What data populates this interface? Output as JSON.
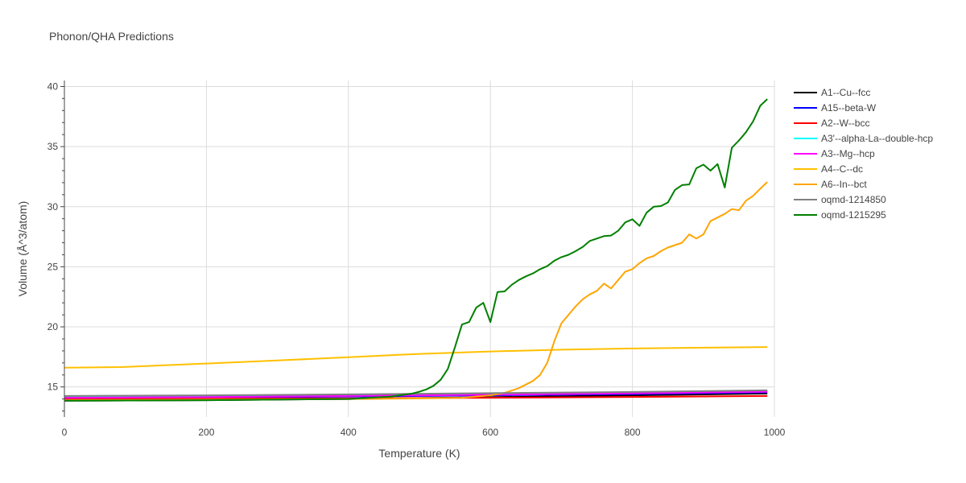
{
  "chart_data": {
    "type": "line",
    "title": "Phonon/QHA Predictions",
    "xlabel": "Temperature (K)",
    "ylabel": "Volume (Å^3/atom)",
    "xlim": [
      0,
      1000
    ],
    "ylim": [
      12.5,
      40.5
    ],
    "xticks": [
      0,
      200,
      400,
      600,
      800,
      1000
    ],
    "yticks": [
      15,
      20,
      25,
      30,
      35,
      40
    ],
    "grid": true,
    "legend_position": "right",
    "series": [
      {
        "name": "A1--Cu--fcc",
        "color": "#000000",
        "points": [
          [
            0,
            13.85
          ],
          [
            200,
            13.9
          ],
          [
            400,
            14.0
          ],
          [
            600,
            14.15
          ],
          [
            800,
            14.3
          ],
          [
            990,
            14.45
          ]
        ]
      },
      {
        "name": "A15--beta-W",
        "color": "#0000ff",
        "points": [
          [
            0,
            14.05
          ],
          [
            200,
            14.1
          ],
          [
            400,
            14.2
          ],
          [
            600,
            14.3
          ],
          [
            800,
            14.4
          ],
          [
            990,
            14.55
          ]
        ]
      },
      {
        "name": "A2--W--bcc",
        "color": "#ff0000",
        "points": [
          [
            0,
            14.0
          ],
          [
            200,
            14.02
          ],
          [
            400,
            14.05
          ],
          [
            600,
            14.1
          ],
          [
            800,
            14.17
          ],
          [
            990,
            14.25
          ]
        ]
      },
      {
        "name": "A3'--alpha-La--double-hcp",
        "color": "#00ffff",
        "points": [
          [
            0,
            14.2
          ],
          [
            200,
            14.25
          ],
          [
            400,
            14.32
          ],
          [
            600,
            14.4
          ],
          [
            800,
            14.5
          ],
          [
            990,
            14.62
          ]
        ]
      },
      {
        "name": "A3--Mg--hcp",
        "color": "#ff00ff",
        "points": [
          [
            0,
            14.1
          ],
          [
            200,
            14.16
          ],
          [
            400,
            14.25
          ],
          [
            600,
            14.35
          ],
          [
            800,
            14.47
          ],
          [
            990,
            14.6
          ]
        ]
      },
      {
        "name": "A4--C--dc",
        "color": "#ffc000",
        "points": [
          [
            0,
            16.6
          ],
          [
            80,
            16.65
          ],
          [
            200,
            16.95
          ],
          [
            300,
            17.2
          ],
          [
            400,
            17.48
          ],
          [
            500,
            17.75
          ],
          [
            600,
            17.95
          ],
          [
            700,
            18.1
          ],
          [
            800,
            18.2
          ],
          [
            900,
            18.27
          ],
          [
            990,
            18.32
          ]
        ]
      },
      {
        "name": "A6--In--bct",
        "color": "#ffa500",
        "points": [
          [
            0,
            13.9
          ],
          [
            200,
            13.95
          ],
          [
            400,
            14.0
          ],
          [
            500,
            14.05
          ],
          [
            560,
            14.1
          ],
          [
            600,
            14.3
          ],
          [
            620,
            14.5
          ],
          [
            640,
            14.9
          ],
          [
            650,
            15.2
          ],
          [
            660,
            15.5
          ],
          [
            670,
            16.0
          ],
          [
            680,
            17.0
          ],
          [
            690,
            18.8
          ],
          [
            700,
            20.3
          ],
          [
            710,
            21.0
          ],
          [
            720,
            21.7
          ],
          [
            730,
            22.3
          ],
          [
            740,
            22.7
          ],
          [
            750,
            23.0
          ],
          [
            760,
            23.6
          ],
          [
            770,
            23.2
          ],
          [
            780,
            23.9
          ],
          [
            790,
            24.6
          ],
          [
            800,
            24.8
          ],
          [
            810,
            25.3
          ],
          [
            820,
            25.7
          ],
          [
            830,
            25.9
          ],
          [
            840,
            26.3
          ],
          [
            850,
            26.6
          ],
          [
            860,
            26.8
          ],
          [
            870,
            27.0
          ],
          [
            880,
            27.7
          ],
          [
            890,
            27.35
          ],
          [
            900,
            27.7
          ],
          [
            910,
            28.8
          ],
          [
            920,
            29.1
          ],
          [
            930,
            29.4
          ],
          [
            940,
            29.8
          ],
          [
            950,
            29.7
          ],
          [
            960,
            30.5
          ],
          [
            970,
            30.9
          ],
          [
            980,
            31.5
          ],
          [
            990,
            32.05
          ]
        ]
      },
      {
        "name": "oqmd-1214850",
        "color": "#808080",
        "points": [
          [
            0,
            14.25
          ],
          [
            200,
            14.3
          ],
          [
            400,
            14.38
          ],
          [
            600,
            14.48
          ],
          [
            800,
            14.58
          ],
          [
            990,
            14.72
          ]
        ]
      },
      {
        "name": "oqmd-1215295",
        "color": "#008000",
        "points": [
          [
            0,
            13.85
          ],
          [
            200,
            13.9
          ],
          [
            400,
            14.0
          ],
          [
            460,
            14.2
          ],
          [
            490,
            14.45
          ],
          [
            500,
            14.6
          ],
          [
            510,
            14.8
          ],
          [
            520,
            15.1
          ],
          [
            530,
            15.6
          ],
          [
            540,
            16.5
          ],
          [
            550,
            18.3
          ],
          [
            560,
            20.2
          ],
          [
            570,
            20.4
          ],
          [
            580,
            21.6
          ],
          [
            590,
            22.0
          ],
          [
            600,
            20.4
          ],
          [
            610,
            22.9
          ],
          [
            620,
            22.95
          ],
          [
            630,
            23.5
          ],
          [
            640,
            23.9
          ],
          [
            650,
            24.2
          ],
          [
            660,
            24.45
          ],
          [
            670,
            24.8
          ],
          [
            680,
            25.05
          ],
          [
            690,
            25.5
          ],
          [
            700,
            25.8
          ],
          [
            710,
            26.0
          ],
          [
            720,
            26.3
          ],
          [
            730,
            26.65
          ],
          [
            740,
            27.15
          ],
          [
            750,
            27.35
          ],
          [
            760,
            27.55
          ],
          [
            770,
            27.6
          ],
          [
            780,
            28.0
          ],
          [
            790,
            28.7
          ],
          [
            800,
            28.95
          ],
          [
            810,
            28.4
          ],
          [
            820,
            29.5
          ],
          [
            830,
            30.0
          ],
          [
            840,
            30.05
          ],
          [
            850,
            30.35
          ],
          [
            860,
            31.4
          ],
          [
            870,
            31.8
          ],
          [
            880,
            31.85
          ],
          [
            890,
            33.2
          ],
          [
            900,
            33.5
          ],
          [
            910,
            33.0
          ],
          [
            920,
            33.55
          ],
          [
            930,
            31.6
          ],
          [
            940,
            34.9
          ],
          [
            950,
            35.5
          ],
          [
            960,
            36.2
          ],
          [
            970,
            37.1
          ],
          [
            980,
            38.4
          ],
          [
            990,
            38.95
          ]
        ]
      }
    ]
  }
}
